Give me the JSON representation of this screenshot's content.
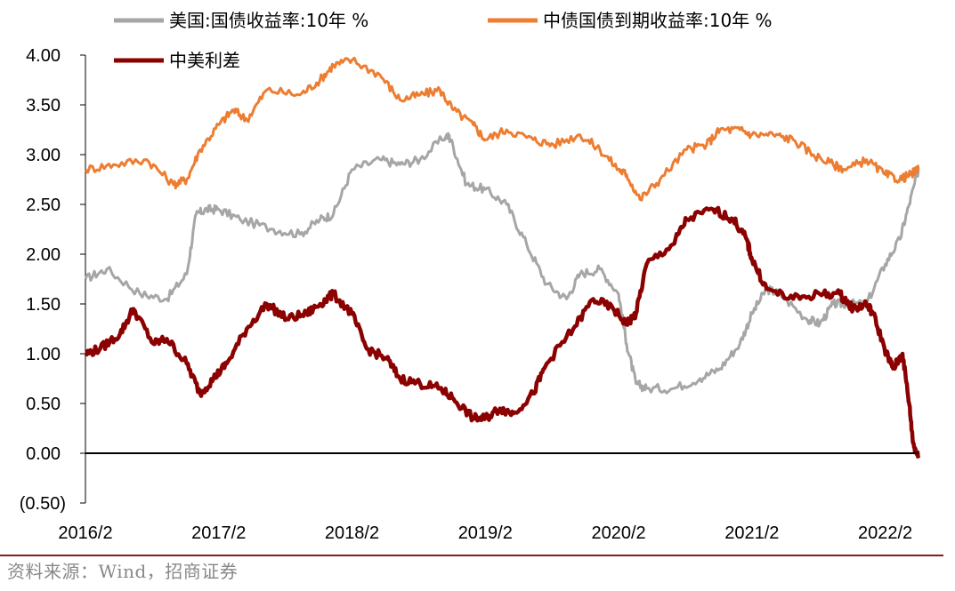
{
  "chart_data": {
    "type": "line",
    "title": "",
    "xlabel": "",
    "ylabel": "",
    "ylim": [
      -0.5,
      4.0
    ],
    "yticks": [
      4.0,
      3.5,
      3.0,
      2.5,
      2.0,
      1.5,
      1.0,
      0.5,
      0.0,
      -0.5
    ],
    "ytick_labels": [
      "4.00",
      "3.50",
      "3.00",
      "2.50",
      "2.00",
      "1.50",
      "1.00",
      "0.50",
      "0.00",
      "(0.50)"
    ],
    "xlim": [
      2016.09,
      2022.34
    ],
    "xticks": [
      2016.09,
      2017.09,
      2018.09,
      2019.09,
      2020.09,
      2021.09,
      2022.09
    ],
    "xtick_labels": [
      "2016/2",
      "2017/2",
      "2018/2",
      "2019/2",
      "2020/2",
      "2021/2",
      "2022/2"
    ],
    "zero_line": 0,
    "legend": "top",
    "series": [
      {
        "name": "美国:国债收益率:10年 %",
        "color": "#a6a6a6",
        "x": [
          2016.09,
          2016.25,
          2016.5,
          2016.7,
          2016.85,
          2016.92,
          2017.0,
          2017.09,
          2017.25,
          2017.5,
          2017.7,
          2017.85,
          2017.95,
          2018.09,
          2018.3,
          2018.45,
          2018.6,
          2018.8,
          2018.83,
          2018.95,
          2019.09,
          2019.25,
          2019.4,
          2019.55,
          2019.7,
          2019.8,
          2019.95,
          2020.09,
          2020.15,
          2020.22,
          2020.3,
          2020.5,
          2020.7,
          2020.85,
          2021.0,
          2021.09,
          2021.2,
          2021.3,
          2021.5,
          2021.6,
          2021.7,
          2021.8,
          2021.95,
          2022.09,
          2022.2,
          2022.27,
          2022.34
        ],
        "values": [
          1.75,
          1.85,
          1.6,
          1.55,
          1.8,
          2.4,
          2.45,
          2.45,
          2.35,
          2.25,
          2.2,
          2.35,
          2.4,
          2.85,
          2.95,
          2.9,
          2.95,
          3.2,
          3.15,
          2.7,
          2.65,
          2.5,
          2.1,
          1.7,
          1.55,
          1.8,
          1.85,
          1.6,
          1.1,
          0.7,
          0.65,
          0.65,
          0.75,
          0.85,
          1.1,
          1.4,
          1.65,
          1.6,
          1.35,
          1.3,
          1.5,
          1.5,
          1.5,
          1.9,
          2.15,
          2.5,
          2.85
        ]
      },
      {
        "name": "中债国债到期收益率:10年 %",
        "color": "#ed7d31",
        "x": [
          2016.09,
          2016.3,
          2016.55,
          2016.75,
          2016.85,
          2016.95,
          2017.09,
          2017.2,
          2017.3,
          2017.45,
          2017.7,
          2017.85,
          2017.95,
          2018.09,
          2018.3,
          2018.45,
          2018.6,
          2018.75,
          2018.85,
          2019.0,
          2019.09,
          2019.25,
          2019.45,
          2019.6,
          2019.8,
          2019.95,
          2020.09,
          2020.15,
          2020.25,
          2020.4,
          2020.6,
          2020.75,
          2020.85,
          2021.0,
          2021.09,
          2021.25,
          2021.4,
          2021.55,
          2021.7,
          2021.8,
          2021.95,
          2022.09,
          2022.2,
          2022.28,
          2022.34
        ],
        "values": [
          2.85,
          2.9,
          2.95,
          2.7,
          2.75,
          3.05,
          3.3,
          3.45,
          3.35,
          3.65,
          3.6,
          3.75,
          3.9,
          3.95,
          3.8,
          3.55,
          3.6,
          3.65,
          3.45,
          3.3,
          3.15,
          3.25,
          3.15,
          3.1,
          3.2,
          3.05,
          2.85,
          2.8,
          2.55,
          2.75,
          3.05,
          3.1,
          3.25,
          3.25,
          3.2,
          3.2,
          3.15,
          3.0,
          2.9,
          2.85,
          2.95,
          2.8,
          2.75,
          2.8,
          2.85
        ]
      },
      {
        "name": "中美利差",
        "color": "#8b0000",
        "x": [
          2016.09,
          2016.2,
          2016.35,
          2016.45,
          2016.6,
          2016.7,
          2016.85,
          2016.95,
          2017.05,
          2017.15,
          2017.3,
          2017.45,
          2017.6,
          2017.75,
          2017.85,
          2017.95,
          2018.09,
          2018.2,
          2018.35,
          2018.45,
          2018.6,
          2018.75,
          2018.85,
          2019.0,
          2019.09,
          2019.2,
          2019.3,
          2019.45,
          2019.55,
          2019.75,
          2019.9,
          2020.05,
          2020.15,
          2020.22,
          2020.3,
          2020.5,
          2020.6,
          2020.8,
          2020.95,
          2021.05,
          2021.09,
          2021.2,
          2021.4,
          2021.6,
          2021.75,
          2021.85,
          2021.95,
          2022.0,
          2022.1,
          2022.15,
          2022.22,
          2022.27,
          2022.3,
          2022.34
        ],
        "values": [
          1.0,
          1.05,
          1.2,
          1.45,
          1.1,
          1.15,
          0.9,
          0.6,
          0.75,
          0.9,
          1.25,
          1.5,
          1.35,
          1.4,
          1.5,
          1.6,
          1.4,
          1.05,
          0.95,
          0.75,
          0.7,
          0.65,
          0.55,
          0.35,
          0.35,
          0.45,
          0.4,
          0.6,
          0.9,
          1.25,
          1.55,
          1.45,
          1.3,
          1.4,
          1.9,
          2.1,
          2.35,
          2.45,
          2.35,
          2.15,
          1.95,
          1.65,
          1.55,
          1.6,
          1.6,
          1.45,
          1.5,
          1.4,
          1.0,
          0.85,
          1.0,
          0.5,
          0.1,
          -0.05
        ]
      }
    ]
  },
  "source": "资料来源：Wind，招商证券"
}
